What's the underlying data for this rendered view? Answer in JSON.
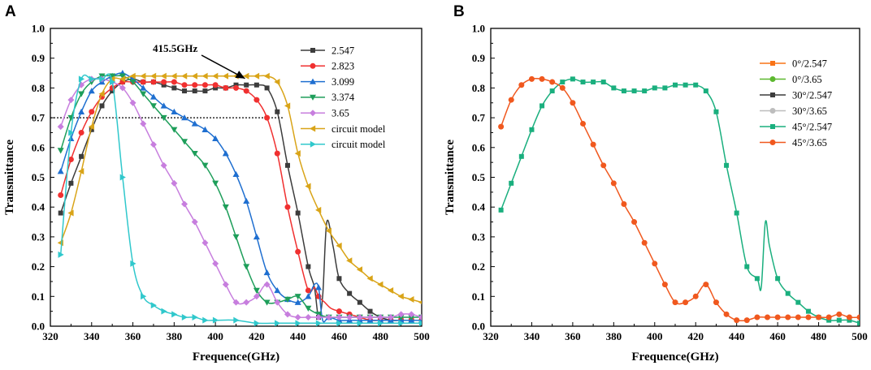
{
  "colors": {
    "s2547": "#3c3c3c",
    "s2823": "#f03030",
    "s3099": "#1f6fd0",
    "s3374": "#1e9e5a",
    "s365": "#c77ede",
    "circ1": "#d9a418",
    "circ2": "#30c8cc",
    "o": "#f97316",
    "g": "#5cb82e",
    "dk": "#3c3c3c",
    "gr": "#bdbdbd",
    "tq": "#1aaf7e",
    "or2": "#f0581e"
  },
  "chart_data": [
    {
      "id": "A",
      "panel_label": "A",
      "type": "line",
      "xlabel": "Frequence(GHz)",
      "ylabel": "Transmittance",
      "xlim": [
        320,
        500
      ],
      "ylim": [
        0,
        1.0
      ],
      "xticks": [
        "320",
        "340",
        "360",
        "380",
        "400",
        "420",
        "440",
        "460",
        "480",
        "500"
      ],
      "yticks": [
        "0.0",
        "0.1",
        "0.2",
        "0.3",
        "0.4",
        "0.5",
        "0.6",
        "0.7",
        "0.8",
        "0.9",
        "1.0"
      ],
      "reference_line_y": 0.7,
      "annotation": {
        "text": "415.5GHz",
        "x": 415.5,
        "y": 0.81
      },
      "legend_position": "top-right",
      "series": [
        {
          "name": "2.547",
          "color_key": "s2547",
          "marker": "square",
          "marker_step": 5,
          "x": [
            325,
            330,
            335,
            340,
            345,
            350,
            355,
            360,
            365,
            370,
            375,
            380,
            385,
            390,
            395,
            400,
            405,
            410,
            415,
            420,
            425,
            430,
            435,
            440,
            445,
            448,
            450,
            452,
            454,
            457,
            460,
            465,
            470,
            475,
            480,
            485,
            490,
            495,
            500
          ],
          "y": [
            0.38,
            0.48,
            0.57,
            0.66,
            0.74,
            0.79,
            0.82,
            0.83,
            0.82,
            0.82,
            0.81,
            0.8,
            0.79,
            0.79,
            0.79,
            0.8,
            0.8,
            0.81,
            0.81,
            0.81,
            0.8,
            0.72,
            0.54,
            0.38,
            0.2,
            0.13,
            0.03,
            0.1,
            0.35,
            0.27,
            0.16,
            0.11,
            0.08,
            0.05,
            0.03,
            0.02,
            0.02,
            0.02,
            0.02
          ]
        },
        {
          "name": "2.823",
          "color_key": "s2823",
          "marker": "circle",
          "marker_step": 5,
          "x": [
            325,
            330,
            335,
            340,
            345,
            350,
            355,
            360,
            365,
            370,
            375,
            380,
            385,
            390,
            395,
            400,
            405,
            410,
            415,
            420,
            425,
            430,
            435,
            440,
            445,
            448,
            450,
            453,
            456,
            460,
            465,
            470,
            475,
            480,
            485,
            490,
            495,
            500
          ],
          "y": [
            0.44,
            0.56,
            0.65,
            0.72,
            0.77,
            0.8,
            0.82,
            0.82,
            0.82,
            0.82,
            0.82,
            0.82,
            0.81,
            0.81,
            0.81,
            0.81,
            0.8,
            0.8,
            0.79,
            0.76,
            0.7,
            0.58,
            0.4,
            0.25,
            0.12,
            0.13,
            0.1,
            0.08,
            0.06,
            0.05,
            0.04,
            0.03,
            0.02,
            0.02,
            0.02,
            0.02,
            0.02,
            0.02
          ]
        },
        {
          "name": "3.099",
          "color_key": "s3099",
          "marker": "triangle-up",
          "marker_step": 5,
          "x": [
            325,
            330,
            335,
            340,
            345,
            350,
            355,
            360,
            365,
            370,
            375,
            380,
            385,
            390,
            395,
            400,
            405,
            410,
            415,
            420,
            425,
            430,
            435,
            440,
            445,
            448,
            450,
            452,
            455,
            460,
            465,
            470,
            475,
            480,
            485,
            490,
            495,
            500
          ],
          "y": [
            0.52,
            0.63,
            0.72,
            0.79,
            0.82,
            0.84,
            0.85,
            0.83,
            0.8,
            0.77,
            0.74,
            0.72,
            0.7,
            0.68,
            0.66,
            0.63,
            0.58,
            0.51,
            0.42,
            0.3,
            0.18,
            0.12,
            0.09,
            0.08,
            0.1,
            0.14,
            0.13,
            0.02,
            0.03,
            0.02,
            0.02,
            0.02,
            0.02,
            0.02,
            0.02,
            0.02,
            0.02,
            0.02
          ]
        },
        {
          "name": "3.374",
          "color_key": "s3374",
          "marker": "triangle-down",
          "marker_step": 5,
          "x": [
            325,
            330,
            335,
            340,
            345,
            350,
            355,
            360,
            365,
            370,
            375,
            380,
            385,
            390,
            395,
            400,
            405,
            410,
            415,
            420,
            425,
            430,
            435,
            440,
            445,
            450,
            455,
            460,
            465,
            470,
            475,
            480,
            485,
            490,
            495,
            500
          ],
          "y": [
            0.59,
            0.7,
            0.78,
            0.82,
            0.84,
            0.84,
            0.84,
            0.82,
            0.78,
            0.74,
            0.7,
            0.66,
            0.62,
            0.58,
            0.54,
            0.48,
            0.4,
            0.3,
            0.2,
            0.12,
            0.08,
            0.08,
            0.09,
            0.1,
            0.06,
            0.04,
            0.03,
            0.03,
            0.03,
            0.03,
            0.03,
            0.03,
            0.03,
            0.03,
            0.03,
            0.03
          ]
        },
        {
          "name": "3.65",
          "color_key": "s365",
          "marker": "diamond",
          "marker_step": 5,
          "x": [
            325,
            330,
            335,
            340,
            345,
            350,
            355,
            360,
            365,
            370,
            375,
            380,
            385,
            390,
            395,
            400,
            405,
            410,
            415,
            420,
            425,
            430,
            435,
            440,
            445,
            450,
            455,
            460,
            465,
            470,
            475,
            480,
            485,
            490,
            495,
            500
          ],
          "y": [
            0.67,
            0.76,
            0.81,
            0.83,
            0.83,
            0.82,
            0.8,
            0.75,
            0.68,
            0.61,
            0.54,
            0.48,
            0.41,
            0.35,
            0.28,
            0.21,
            0.14,
            0.08,
            0.08,
            0.1,
            0.14,
            0.08,
            0.04,
            0.03,
            0.03,
            0.03,
            0.03,
            0.03,
            0.03,
            0.03,
            0.03,
            0.03,
            0.03,
            0.04,
            0.04,
            0.03
          ]
        },
        {
          "name": "circuit model",
          "color_key": "circ1",
          "marker": "triangle-left",
          "marker_step": 5,
          "x": [
            325,
            330,
            335,
            340,
            345,
            350,
            355,
            360,
            365,
            370,
            375,
            380,
            385,
            390,
            395,
            400,
            405,
            410,
            415,
            420,
            425,
            430,
            435,
            440,
            445,
            450,
            455,
            460,
            465,
            470,
            475,
            480,
            485,
            490,
            495,
            500
          ],
          "y": [
            0.28,
            0.38,
            0.52,
            0.67,
            0.78,
            0.83,
            0.83,
            0.84,
            0.84,
            0.84,
            0.84,
            0.84,
            0.84,
            0.84,
            0.84,
            0.84,
            0.84,
            0.84,
            0.84,
            0.84,
            0.84,
            0.82,
            0.74,
            0.58,
            0.47,
            0.39,
            0.32,
            0.27,
            0.22,
            0.19,
            0.16,
            0.14,
            0.12,
            0.1,
            0.09,
            0.08
          ]
        },
        {
          "name": "circuit model",
          "color_key": "circ2",
          "marker": "triangle-right",
          "marker_step": 5,
          "x": [
            325,
            330,
            335,
            340,
            345,
            350,
            355,
            360,
            365,
            370,
            375,
            380,
            385,
            390,
            395,
            400,
            410,
            420,
            430,
            440,
            450,
            460,
            470,
            480,
            490,
            500
          ],
          "y": [
            0.24,
            0.65,
            0.83,
            0.83,
            0.83,
            0.82,
            0.5,
            0.21,
            0.1,
            0.07,
            0.05,
            0.04,
            0.03,
            0.03,
            0.02,
            0.02,
            0.02,
            0.01,
            0.01,
            0.01,
            0.01,
            0.01,
            0.01,
            0.01,
            0.01,
            0.01
          ]
        }
      ]
    },
    {
      "id": "B",
      "panel_label": "B",
      "type": "line",
      "xlabel": "Frequence(GHz)",
      "ylabel": "Transmittance",
      "xlim": [
        320,
        500
      ],
      "ylim": [
        0,
        1.0
      ],
      "xticks": [
        "320",
        "340",
        "360",
        "380",
        "400",
        "420",
        "440",
        "460",
        "480",
        "500"
      ],
      "yticks": [
        "0.0",
        "0.1",
        "0.2",
        "0.3",
        "0.4",
        "0.5",
        "0.6",
        "0.7",
        "0.8",
        "0.9",
        "1.0"
      ],
      "legend_position": "top-right",
      "series": [
        {
          "name": "0°/2.547",
          "color_key": "o",
          "marker": "square",
          "marker_step": 1,
          "x": [],
          "y": []
        },
        {
          "name": "0°/3.65",
          "color_key": "g",
          "marker": "circle",
          "marker_step": 1,
          "x": [],
          "y": []
        },
        {
          "name": "30°/2.547",
          "color_key": "dk",
          "marker": "square",
          "marker_step": 1,
          "x": [],
          "y": []
        },
        {
          "name": "30°/3.65",
          "color_key": "gr",
          "marker": "circle",
          "marker_step": 1,
          "x": [],
          "y": []
        },
        {
          "name": "45°/2.547",
          "color_key": "tq",
          "marker": "square",
          "marker_step": 1,
          "x": [
            325,
            330,
            335,
            340,
            345,
            350,
            355,
            360,
            365,
            370,
            375,
            380,
            385,
            390,
            395,
            400,
            405,
            410,
            415,
            420,
            425,
            430,
            435,
            440,
            445,
            450,
            452,
            454,
            456,
            460,
            465,
            470,
            475,
            480,
            485,
            490,
            495,
            500
          ],
          "y": [
            0.39,
            0.48,
            0.57,
            0.66,
            0.74,
            0.79,
            0.82,
            0.83,
            0.82,
            0.82,
            0.82,
            0.8,
            0.79,
            0.79,
            0.79,
            0.8,
            0.8,
            0.81,
            0.81,
            0.81,
            0.79,
            0.72,
            0.54,
            0.38,
            0.2,
            0.16,
            0.13,
            0.35,
            0.27,
            0.16,
            0.11,
            0.08,
            0.05,
            0.03,
            0.02,
            0.02,
            0.02,
            0.01
          ]
        },
        {
          "name": "45°/3.65",
          "color_key": "or2",
          "marker": "circle",
          "marker_step": 1,
          "x": [
            325,
            330,
            335,
            340,
            345,
            350,
            355,
            360,
            365,
            370,
            375,
            380,
            385,
            390,
            395,
            400,
            405,
            410,
            415,
            420,
            425,
            430,
            435,
            440,
            445,
            450,
            455,
            460,
            465,
            470,
            475,
            480,
            485,
            490,
            495,
            500
          ],
          "y": [
            0.67,
            0.76,
            0.81,
            0.83,
            0.83,
            0.82,
            0.8,
            0.75,
            0.68,
            0.61,
            0.54,
            0.48,
            0.41,
            0.35,
            0.28,
            0.21,
            0.14,
            0.08,
            0.08,
            0.1,
            0.14,
            0.08,
            0.04,
            0.02,
            0.02,
            0.03,
            0.03,
            0.03,
            0.03,
            0.03,
            0.03,
            0.03,
            0.03,
            0.04,
            0.03,
            0.03
          ]
        }
      ]
    }
  ]
}
